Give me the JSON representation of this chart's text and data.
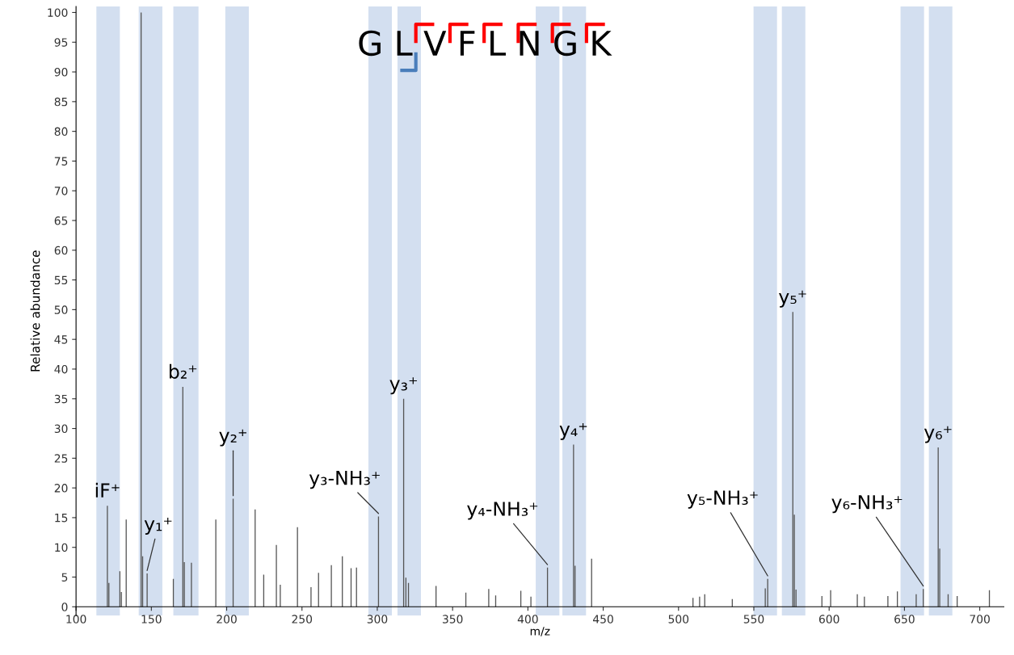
{
  "chart_data": {
    "type": "bar",
    "xlabel": "m/z",
    "ylabel": "Relative abundance",
    "x": [
      120.8,
      121.8,
      129.1,
      130.1,
      133.3,
      143.2,
      144.2,
      147.2,
      164.6,
      170.9,
      171.9,
      176.6,
      192.8,
      204.3,
      218.9,
      224.6,
      233.0,
      235.6,
      247.0,
      256.0,
      261.0,
      269.5,
      276.8,
      282.6,
      286.2,
      300.8,
      317.5,
      319.0,
      320.7,
      339.0,
      358.8,
      374.0,
      378.6,
      395.3,
      402.0,
      413.0,
      430.3,
      431.3,
      442.3,
      509.6,
      514.0,
      517.4,
      535.7,
      557.6,
      559.2,
      575.9,
      576.9,
      578.0,
      595.2,
      601.0,
      618.7,
      623.4,
      639.0,
      645.3,
      657.8,
      662.5,
      672.4,
      673.4,
      679.0,
      685.0,
      706.4
    ],
    "values": [
      17,
      4,
      6,
      2.5,
      14.7,
      100,
      8.5,
      5.6,
      4.7,
      37,
      7.5,
      7.4,
      14.7,
      18.2,
      16.4,
      5.4,
      10.4,
      3.7,
      13.4,
      3.3,
      5.7,
      7.0,
      8.5,
      6.5,
      6.6,
      15.2,
      35,
      4.9,
      4.0,
      3.5,
      2.4,
      3.0,
      1.9,
      2.7,
      1.7,
      6.6,
      27.3,
      6.9,
      8.1,
      1.5,
      1.7,
      2.1,
      1.3,
      3.1,
      4.7,
      49.6,
      15.5,
      2.9,
      1.8,
      2.8,
      2.1,
      1.7,
      1.8,
      2.6,
      2.1,
      3.0,
      26.8,
      9.8,
      2.1,
      1.8,
      2.8
    ],
    "color": "#555555",
    "xlim": [
      100,
      716
    ],
    "xticks": [
      100,
      150,
      200,
      250,
      300,
      350,
      400,
      450,
      500,
      550,
      600,
      650,
      700
    ],
    "ylim": [
      -1.5,
      101
    ],
    "yticks": [
      0,
      5,
      10,
      15,
      20,
      25,
      30,
      35,
      40,
      45,
      50,
      55,
      60,
      65,
      70,
      75,
      80,
      85,
      90,
      95,
      100
    ],
    "bands": [
      {
        "axis": "x",
        "from": 113.5,
        "to": 129.1,
        "color": "#d3dff0"
      },
      {
        "axis": "x",
        "from": 141.6,
        "to": 157.3,
        "color": "#d3dff0"
      },
      {
        "axis": "x",
        "from": 164.6,
        "to": 181.3,
        "color": "#d3dff0"
      },
      {
        "axis": "x",
        "from": 199.1,
        "to": 214.7,
        "color": "#d3dff0"
      },
      {
        "axis": "x",
        "from": 294.1,
        "to": 309.7,
        "color": "#d3dff0"
      },
      {
        "axis": "x",
        "from": 313.4,
        "to": 329.0,
        "color": "#d3dff0"
      },
      {
        "axis": "x",
        "from": 405.2,
        "to": 420.9,
        "color": "#d3dff0"
      },
      {
        "axis": "x",
        "from": 422.9,
        "to": 438.6,
        "color": "#d3dff0"
      },
      {
        "axis": "x",
        "from": 549.8,
        "to": 565.4,
        "color": "#d3dff0"
      },
      {
        "axis": "x",
        "from": 568.6,
        "to": 584.2,
        "color": "#d3dff0"
      },
      {
        "axis": "x",
        "from": 647.4,
        "to": 663.0,
        "color": "#d3dff0"
      },
      {
        "axis": "x",
        "from": 666.2,
        "to": 681.8,
        "color": "#d3dff0"
      }
    ],
    "annotations": [
      {
        "text": "iF⁺",
        "x": 120.8,
        "y": 17
      },
      {
        "text": "y₁⁺",
        "x": 147.2,
        "y": 5.6
      },
      {
        "text": "b₂⁺",
        "x": 170.9,
        "y": 37
      },
      {
        "text": "y₂⁺",
        "x": 204.3,
        "y": 18.2
      },
      {
        "text": "y₃-NH₃⁺",
        "x": 300.8,
        "y": 15.2
      },
      {
        "text": "y₃⁺",
        "x": 317.5,
        "y": 35
      },
      {
        "text": "y₄-NH₃⁺",
        "x": 413.0,
        "y": 6.6
      },
      {
        "text": "y₄⁺",
        "x": 430.3,
        "y": 27.3
      },
      {
        "text": "y₅-NH₃⁺",
        "x": 559.2,
        "y": 4.7
      },
      {
        "text": "y₅⁺",
        "x": 575.9,
        "y": 49.6
      },
      {
        "text": "y₆-NH₃⁺",
        "x": 662.5,
        "y": 3.0
      },
      {
        "text": "y₆⁺",
        "x": 672.4,
        "y": 26.8
      },
      "G L V F L N G K"
    ],
    "grid": false
  }
}
